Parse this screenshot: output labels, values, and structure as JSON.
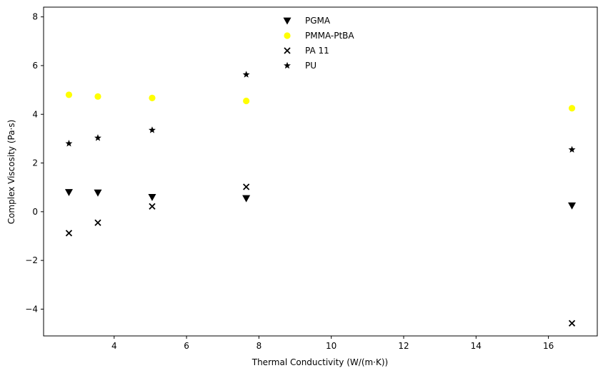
{
  "chart_data": {
    "type": "scatter",
    "title": "",
    "xlabel": "Thermal Conductivity (W/(m·K))",
    "ylabel": "Complex Viscosity (Pa·s)",
    "xlim": [
      2.05,
      17.35
    ],
    "ylim": [
      -5.1,
      8.4
    ],
    "x_ticks": [
      4,
      6,
      8,
      10,
      12,
      14,
      16
    ],
    "y_ticks": [
      -4,
      -2,
      0,
      2,
      4,
      6,
      8
    ],
    "x_tick_labels": [
      "4",
      "6",
      "8",
      "10",
      "12",
      "14",
      "16"
    ],
    "y_tick_labels": [
      "−4",
      "−2",
      "0",
      "2",
      "4",
      "6",
      "8"
    ],
    "grid": false,
    "legend_position": "top-center",
    "series": [
      {
        "name": "PGMA",
        "marker": "triangle-down",
        "color": "#000000",
        "x": [
          2.75,
          3.55,
          5.05,
          7.65,
          16.65
        ],
        "y": [
          0.8,
          0.78,
          0.6,
          0.55,
          0.25
        ]
      },
      {
        "name": "PMMA-PtBA",
        "marker": "circle",
        "color": "#ffff00",
        "x": [
          2.75,
          3.55,
          5.05,
          7.65,
          16.65
        ],
        "y": [
          4.8,
          4.73,
          4.67,
          4.55,
          4.25
        ]
      },
      {
        "name": "PA 11",
        "marker": "x",
        "color": "#000000",
        "x": [
          2.75,
          3.55,
          5.05,
          7.65,
          16.65
        ],
        "y": [
          -0.88,
          -0.45,
          0.22,
          1.02,
          -4.58
        ]
      },
      {
        "name": "PU",
        "marker": "star",
        "color": "#000000",
        "x": [
          2.75,
          3.55,
          5.05,
          7.65,
          16.65
        ],
        "y": [
          2.8,
          3.03,
          3.35,
          5.63,
          2.55
        ]
      }
    ]
  }
}
